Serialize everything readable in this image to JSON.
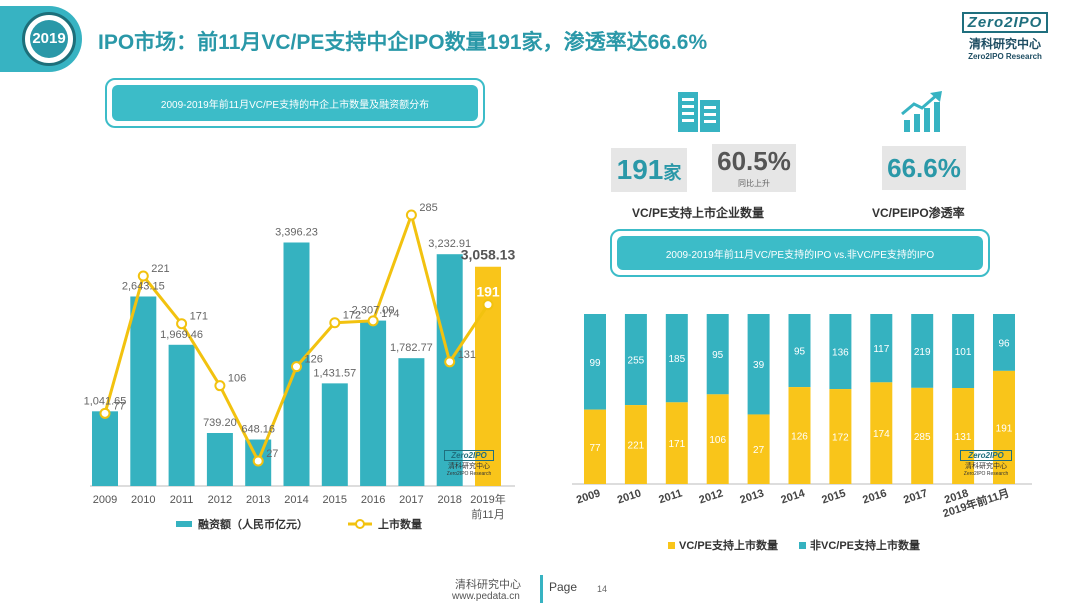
{
  "header": {
    "year_badge": "2019",
    "title": "IPO市场：前11月VC/PE支持中企IPO数量191家，渗透率达66.6%",
    "logo_brand": "Zero2IPO",
    "logo_cn": "清科研究中心",
    "logo_en": "Zero2IPO Research"
  },
  "left_panel": {
    "banner": "2009-2019年前11月VC/PE支持的中企上市数量及融资额分布"
  },
  "kpis": {
    "count_value": "191",
    "count_unit": "家",
    "growth_value": "60.5%",
    "growth_sub": "同比上升",
    "count_label": "VC/PE支持上市企业数量",
    "rate_value": "66.6%",
    "rate_label": "VC/PEIPO渗透率"
  },
  "right_panel": {
    "banner": "2009-2019年前11月VC/PE支持的IPO vs.非VC/PE支持的IPO"
  },
  "watermark": {
    "brand": "Zero2IPO",
    "cn": "清科研究中心",
    "en": "Zero2IPO Research"
  },
  "footer": {
    "org": "清科研究中心",
    "url": "www.pedata.cn",
    "page_label": "Page",
    "page_number": "14"
  },
  "chart_data": [
    {
      "type": "bar",
      "categories": [
        "2009",
        "2010",
        "2011",
        "2012",
        "2013",
        "2014",
        "2015",
        "2016",
        "2017",
        "2018",
        "2019年前11月"
      ],
      "series": [
        {
          "name": "融资额（人民币亿元）",
          "kind": "bar",
          "values": [
            1041.65,
            2643.15,
            1969.46,
            739.2,
            648.16,
            3396.23,
            1431.57,
            2307.0,
            1782.77,
            3232.91,
            3058.13
          ],
          "labels": [
            "1,041.65",
            "2,643.15",
            "1,969.46",
            "739.20",
            "648.16",
            "3,396.23",
            "1,431.57",
            "2,307.00",
            "1,782.77",
            "3,232.91",
            "3,058.13"
          ]
        },
        {
          "name": "上市数量",
          "kind": "line",
          "values": [
            77,
            221,
            171,
            106,
            27,
            126,
            172,
            174,
            285,
            131,
            191
          ]
        }
      ],
      "legend": "bottom",
      "colors": {
        "bar": "#35b2c0",
        "bar_highlight": "#f9c51a",
        "line": "#f2c20f"
      }
    },
    {
      "type": "bar",
      "stacked": true,
      "categories": [
        "2009",
        "2010",
        "2011",
        "2012",
        "2013",
        "2014",
        "2015",
        "2016",
        "2017",
        "2018",
        "2019年前11月"
      ],
      "series": [
        {
          "name": "VC/PE支持上市数量",
          "values": [
            77,
            221,
            171,
            106,
            27,
            126,
            172,
            174,
            285,
            131,
            191
          ]
        },
        {
          "name": "非VC/PE支持上市数量",
          "values": [
            99,
            255,
            185,
            95,
            39,
            95,
            136,
            117,
            219,
            101,
            96
          ]
        }
      ],
      "percent_stacked": true,
      "legend": "bottom",
      "colors": {
        "vcpe": "#f9c51a",
        "non_vcpe": "#35b2c0"
      }
    }
  ]
}
